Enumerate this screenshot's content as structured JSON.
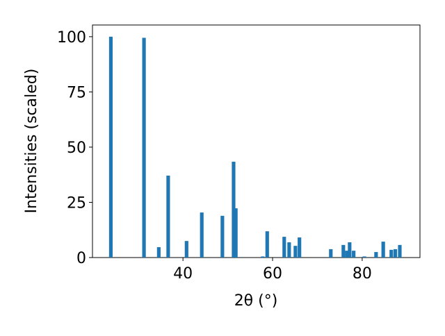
{
  "chart_data": {
    "type": "bar",
    "xlabel": "2θ (°)",
    "ylabel": "Intensities (scaled)",
    "x": [
      23.9,
      31.3,
      34.6,
      36.7,
      40.8,
      44.2,
      48.8,
      51.3,
      51.8,
      57.8,
      58.8,
      62.6,
      63.7,
      65.1,
      66.0,
      73.0,
      75.8,
      76.6,
      77.2,
      78.1,
      80.5,
      83.1,
      84.7,
      86.5,
      87.4,
      88.4
    ],
    "values": [
      100,
      99.5,
      4.7,
      37.1,
      7.5,
      20.4,
      18.9,
      43.4,
      22.3,
      0.5,
      11.9,
      9.4,
      6.9,
      5.3,
      9.1,
      3.8,
      5.7,
      3.1,
      6.9,
      3.1,
      0.5,
      2.5,
      7.2,
      3.5,
      3.8,
      5.7
    ],
    "color": "#1f77b4",
    "xlim": [
      19.8,
      92.9
    ],
    "xticks": [
      40,
      60,
      80
    ],
    "ylim": [
      0,
      105.3
    ],
    "yticks": [
      0,
      25,
      50,
      75,
      100
    ],
    "grid": false
  }
}
